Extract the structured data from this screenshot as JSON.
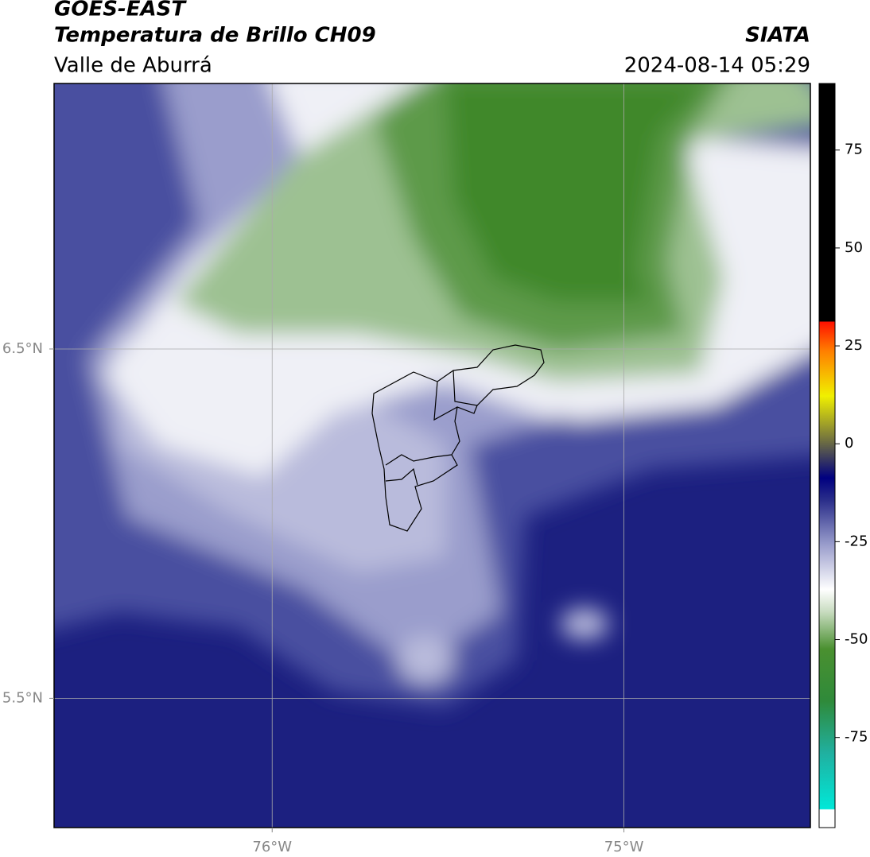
{
  "header": {
    "satellite": "GOES-EAST",
    "product": "Temperatura de Brillo CH09",
    "region": "Valle de Aburrá",
    "agency": "SIATA",
    "datetime": "2024-08-14 05:29"
  },
  "map": {
    "xlim": [
      -76.62,
      -74.47
    ],
    "ylim": [
      5.13,
      7.26
    ],
    "xticks": [
      {
        "value": -76,
        "label": "76°W"
      },
      {
        "value": -75,
        "label": "75°W"
      }
    ],
    "yticks": [
      {
        "value": 5.5,
        "label": "5.5°N"
      },
      {
        "value": 6.5,
        "label": "6.5°N"
      }
    ],
    "grid": true
  },
  "colorbar": {
    "clim": [
      -98,
      92
    ],
    "ticks": [
      -75,
      -50,
      -25,
      0,
      25,
      50,
      75
    ]
  }
}
